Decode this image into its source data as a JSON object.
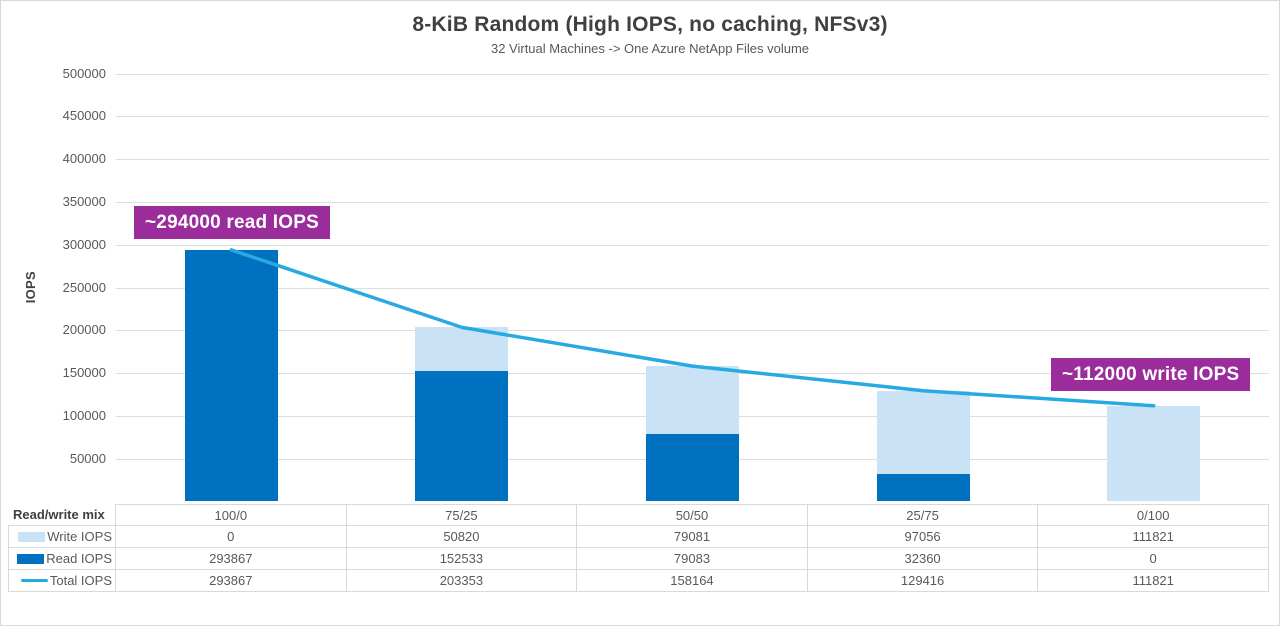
{
  "title": "8-KiB Random (High IOPS, no caching, NFSv3)",
  "subtitle": "32 Virtual Machines -> One Azure NetApp Files volume",
  "y_axis_label": "IOPS",
  "annotations": [
    {
      "text": "~294000 read IOPS"
    },
    {
      "text": "~112000 write IOPS"
    }
  ],
  "colors": {
    "write_bar": "#c9e2f5",
    "read_bar": "#0070c0",
    "total_line": "#27aae1",
    "annotation_bg": "#9a2c9c",
    "grid": "#dedede",
    "table_border": "#d9d9d9",
    "text_dark": "#404040",
    "text_gray": "#595959"
  },
  "chart_data": {
    "type": "bar",
    "subtype": "stacked-bars-with-line-overlay",
    "title": "8-KiB Random (High IOPS, no caching, NFSv3)",
    "subtitle": "32 Virtual Machines -> One Azure NetApp Files volume",
    "xlabel_header": "Read/write mix",
    "ylabel": "IOPS",
    "categories": [
      "100/0",
      "75/25",
      "50/50",
      "25/75",
      "0/100"
    ],
    "series": [
      {
        "name": "Write IOPS",
        "render": "bar-stack-top",
        "swatch": "rect-light",
        "color": "#c9e2f5",
        "values": [
          0,
          50820,
          79081,
          97056,
          111821
        ]
      },
      {
        "name": "Read IOPS",
        "render": "bar-stack-bottom",
        "swatch": "rect-dark",
        "color": "#0070c0",
        "values": [
          293867,
          152533,
          79083,
          32360,
          0
        ]
      },
      {
        "name": "Total IOPS",
        "render": "line",
        "swatch": "line",
        "color": "#27aae1",
        "values": [
          293867,
          203353,
          158164,
          129416,
          111821
        ]
      }
    ],
    "ylim": [
      0,
      500000
    ],
    "ytick_step": 50000,
    "grid": true,
    "legend_position": "data-table-left-column"
  }
}
